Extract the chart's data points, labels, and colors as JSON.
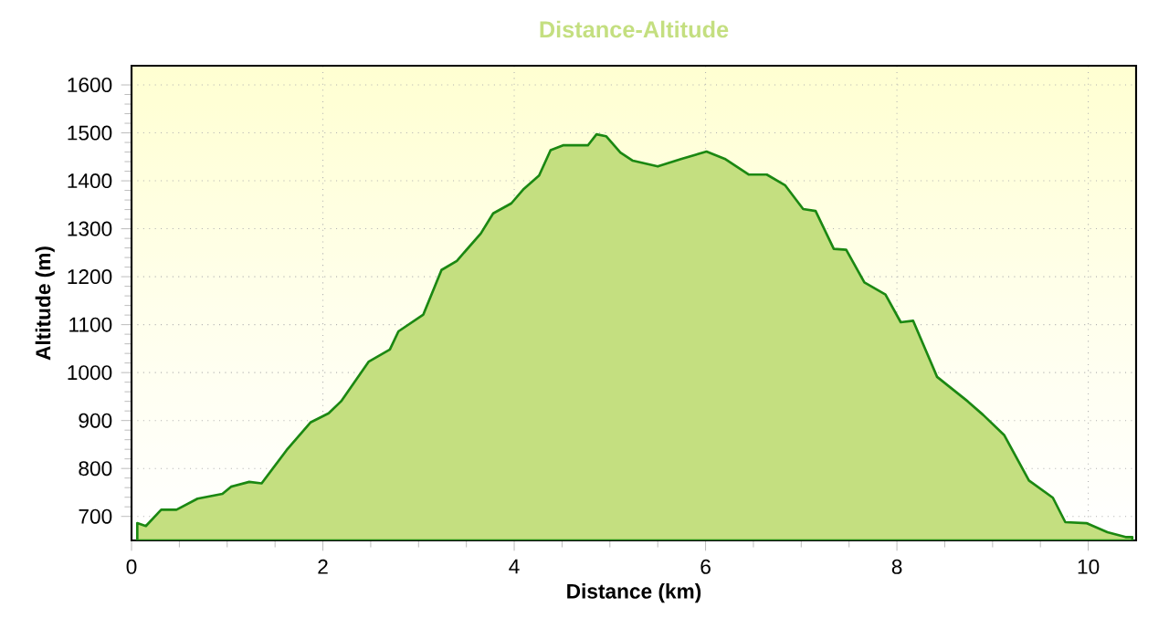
{
  "chart_data": {
    "type": "area",
    "title": "Distance-Altitude",
    "xlabel": "Distance (km)",
    "ylabel": "Altitude (m)",
    "xlim": [
      0,
      10.5
    ],
    "xticks": [
      0,
      2,
      4,
      6,
      8,
      10
    ],
    "ylim": [
      650,
      1640
    ],
    "yticks": [
      700,
      800,
      900,
      1000,
      1100,
      1200,
      1300,
      1400,
      1500,
      1600
    ],
    "grid": true,
    "marker": "none",
    "line_style": "solid",
    "series": [
      {
        "color": "#c4df80",
        "x": [
          0.06,
          0.15,
          0.31,
          0.47,
          0.69,
          0.95,
          1.04,
          1.23,
          1.36,
          1.62,
          1.87,
          2.06,
          2.19,
          2.48,
          2.7,
          2.79,
          3.05,
          3.24,
          3.4,
          3.65,
          3.78,
          3.97,
          4.1,
          4.26,
          4.38,
          4.51,
          4.77,
          4.86,
          4.96,
          5.11,
          5.24,
          5.5,
          5.75,
          6.01,
          6.2,
          6.45,
          6.64,
          6.83,
          7.02,
          7.15,
          7.34,
          7.47,
          7.66,
          7.88,
          8.04,
          8.17,
          8.42,
          8.74,
          8.9,
          9.12,
          9.38,
          9.63,
          9.76,
          9.98,
          10.2,
          10.39,
          10.46
        ],
        "values": [
          686,
          680,
          714,
          714,
          737,
          747,
          762,
          772,
          769,
          838,
          896,
          915,
          940,
          1023,
          1048,
          1086,
          1121,
          1214,
          1233,
          1290,
          1332,
          1353,
          1383,
          1411,
          1464,
          1474,
          1474,
          1497,
          1493,
          1459,
          1442,
          1430,
          1446,
          1461,
          1446,
          1413,
          1413,
          1391,
          1341,
          1337,
          1258,
          1256,
          1188,
          1163,
          1105,
          1108,
          991,
          940,
          912,
          870,
          775,
          739,
          688,
          686,
          667,
          657,
          657
        ]
      }
    ]
  }
}
